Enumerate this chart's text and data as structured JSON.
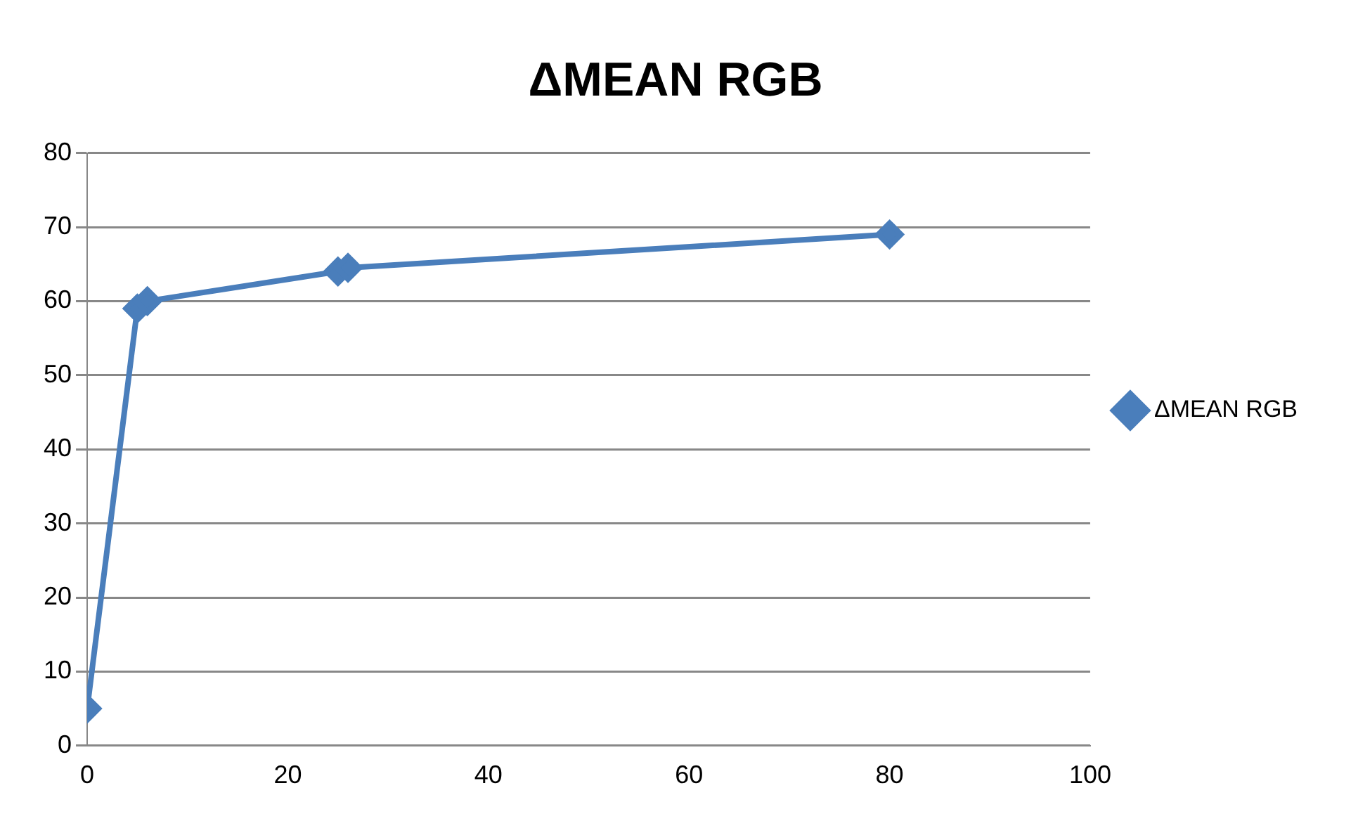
{
  "chart_data": {
    "type": "line",
    "title": "ΔMEAN RGB",
    "x": [
      0,
      5,
      6,
      25,
      26,
      80
    ],
    "series": [
      {
        "name": "ΔMEAN RGB",
        "color": "#4a7ebb",
        "values": [
          5,
          59,
          60,
          64,
          64.5,
          69
        ]
      }
    ],
    "xlim": [
      0,
      100
    ],
    "xticks": [
      0,
      20,
      40,
      60,
      80,
      100
    ],
    "ylim": [
      0,
      80
    ],
    "yticks": [
      0,
      10,
      20,
      30,
      40,
      50,
      60,
      70,
      80
    ],
    "grid": "y",
    "legend": "right",
    "marker": "diamond",
    "line_style": "solid"
  }
}
